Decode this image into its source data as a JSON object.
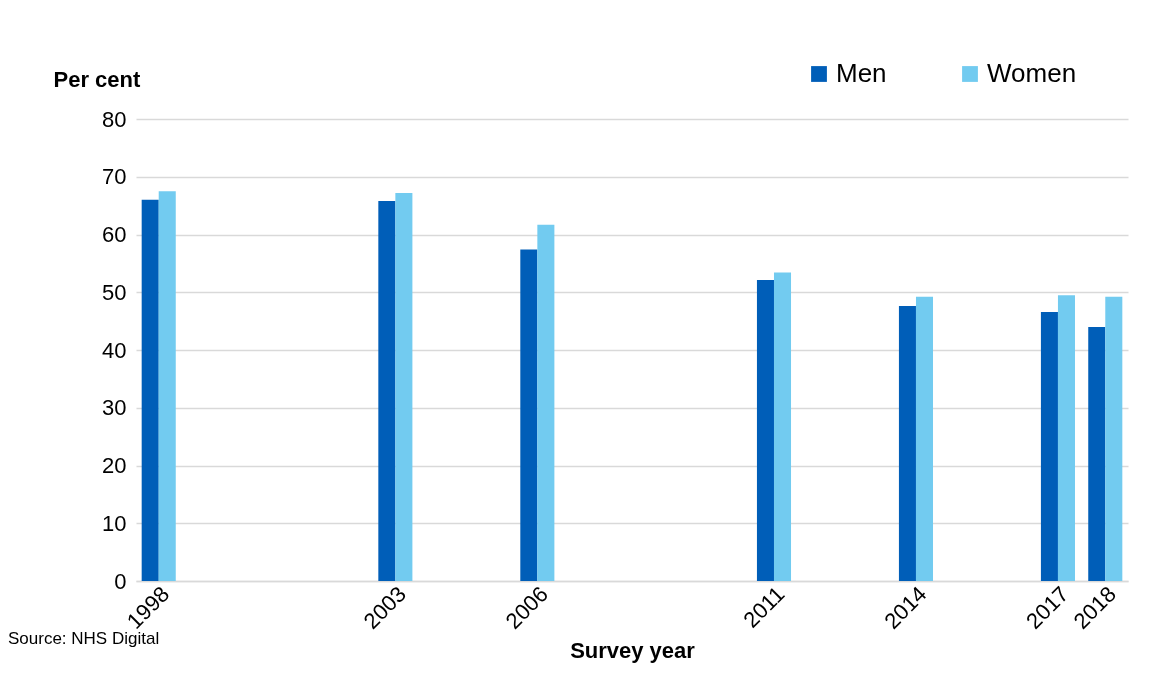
{
  "chart_data": {
    "type": "bar",
    "xlabel": "Survey year",
    "ylabel": "Per cent",
    "categories": [
      "1998",
      null,
      null,
      null,
      null,
      "2003",
      null,
      null,
      "2006",
      null,
      null,
      null,
      null,
      "2011",
      null,
      null,
      "2014",
      null,
      null,
      "2017",
      "2018"
    ],
    "series": [
      {
        "name": "Men",
        "color": "#005eb8",
        "values": [
          66,
          null,
          null,
          null,
          null,
          65.8,
          null,
          null,
          57.4,
          null,
          null,
          null,
          null,
          52.1,
          null,
          null,
          47.6,
          null,
          null,
          46.6,
          44
        ]
      },
      {
        "name": "Women",
        "color": "#72cbf0",
        "values": [
          67.5,
          null,
          null,
          null,
          null,
          67.2,
          null,
          null,
          61.7,
          null,
          null,
          null,
          null,
          53.4,
          null,
          null,
          49.2,
          null,
          null,
          49.5,
          49.2
        ]
      }
    ],
    "ylim": [
      0,
      80
    ],
    "yticks": [
      0,
      10,
      20,
      30,
      40,
      50,
      60,
      70,
      80
    ],
    "grid": "y",
    "legend": "top right",
    "annotations": [
      "Source: NHS Digital"
    ]
  }
}
